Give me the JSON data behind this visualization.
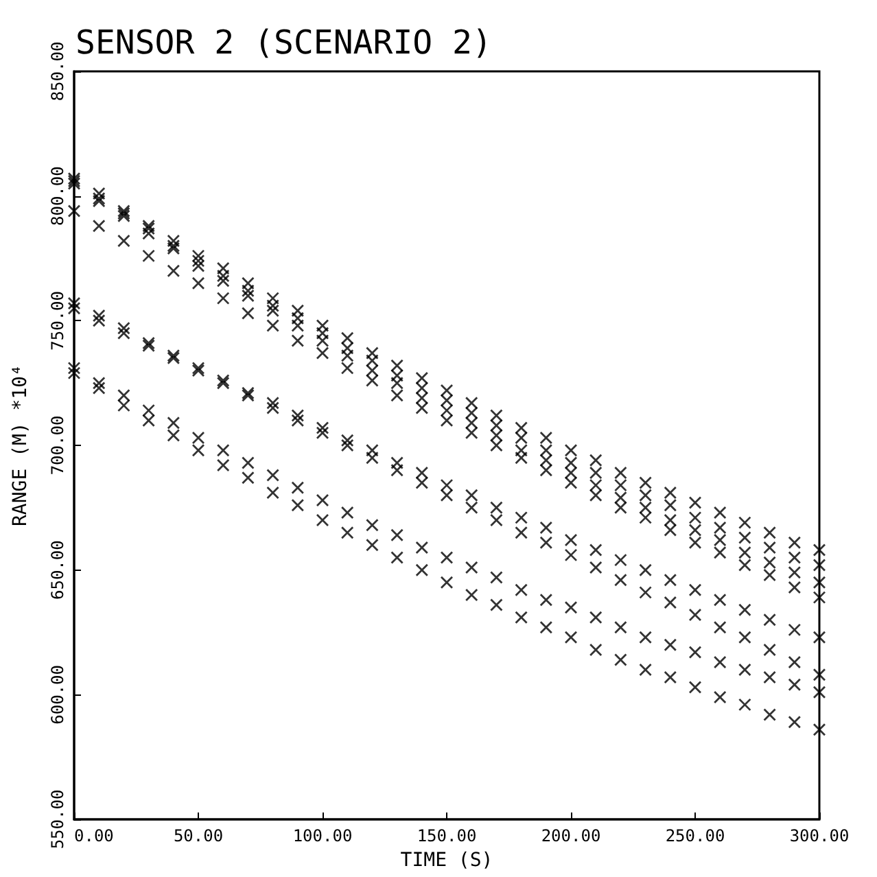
{
  "chart_data": {
    "type": "scatter",
    "title": "SENSOR 2 (SCENARIO 2)",
    "xlabel": "TIME (S)",
    "ylabel": "RANGE (M) *10⁴",
    "marker": "cross",
    "grid": false,
    "x": [
      0,
      10,
      20,
      30,
      40,
      50,
      60,
      70,
      80,
      90,
      100,
      110,
      120,
      130,
      140,
      150,
      160,
      170,
      180,
      190,
      200,
      210,
      220,
      230,
      240,
      250,
      260,
      270,
      280,
      290,
      300
    ],
    "xlim": [
      0,
      300
    ],
    "xticks": [
      {
        "value": 0,
        "label": "0.00"
      },
      {
        "value": 50,
        "label": "50.00"
      },
      {
        "value": 100,
        "label": "100.00"
      },
      {
        "value": 150,
        "label": "150.00"
      },
      {
        "value": 200,
        "label": "200.00"
      },
      {
        "value": 250,
        "label": "250.00"
      },
      {
        "value": 300,
        "label": "300.00"
      }
    ],
    "ylim": [
      550,
      850
    ],
    "yticks": [
      {
        "value": 550,
        "label": "550.00"
      },
      {
        "value": 600,
        "label": "600.00"
      },
      {
        "value": 650,
        "label": "650.00"
      },
      {
        "value": 700,
        "label": "700.00"
      },
      {
        "value": 750,
        "label": "750.00"
      },
      {
        "value": 800,
        "label": "800.00"
      },
      {
        "value": 850,
        "label": "850.00"
      }
    ],
    "series": [
      {
        "color": "#000000",
        "values": [
          807,
          801,
          794,
          788,
          782,
          776,
          771,
          765,
          759,
          754,
          748,
          743,
          737,
          732,
          727,
          722,
          717,
          712,
          707,
          703,
          698,
          694,
          689,
          685,
          681,
          677,
          673,
          669,
          665,
          661,
          658
        ]
      },
      {
        "color": "#000000",
        "values": [
          806,
          799,
          793,
          787,
          780,
          774,
          768,
          762,
          756,
          751,
          745,
          739,
          734,
          728,
          723,
          718,
          713,
          708,
          703,
          698,
          693,
          689,
          684,
          680,
          676,
          671,
          667,
          663,
          659,
          655,
          652
        ]
      },
      {
        "color": "#000000",
        "values": [
          805,
          798,
          792,
          785,
          779,
          772,
          766,
          760,
          754,
          748,
          742,
          736,
          730,
          725,
          719,
          714,
          709,
          704,
          698,
          694,
          689,
          684,
          679,
          675,
          670,
          666,
          662,
          657,
          653,
          649,
          645
        ]
      },
      {
        "color": "#000000",
        "values": [
          794,
          788,
          782,
          776,
          770,
          765,
          759,
          753,
          748,
          742,
          737,
          731,
          726,
          720,
          715,
          710,
          705,
          700,
          695,
          690,
          685,
          680,
          675,
          671,
          666,
          661,
          657,
          652,
          648,
          643,
          639
        ]
      },
      {
        "color": "#000000",
        "values": [
          757,
          752,
          747,
          741,
          736,
          731,
          726,
          721,
          717,
          712,
          707,
          702,
          698,
          693,
          689,
          684,
          680,
          675,
          671,
          667,
          662,
          658,
          654,
          650,
          646,
          642,
          638,
          634,
          630,
          626,
          623
        ]
      },
      {
        "color": "#000000",
        "values": [
          755,
          750,
          745,
          740,
          735,
          730,
          725,
          720,
          715,
          710,
          705,
          700,
          695,
          690,
          685,
          680,
          675,
          670,
          665,
          661,
          656,
          651,
          646,
          641,
          637,
          632,
          627,
          623,
          618,
          613,
          608
        ]
      },
      {
        "color": "#000000",
        "values": [
          731,
          725,
          720,
          714,
          709,
          703,
          698,
          693,
          688,
          683,
          678,
          673,
          668,
          664,
          659,
          655,
          651,
          647,
          642,
          638,
          635,
          631,
          627,
          623,
          620,
          617,
          613,
          610,
          607,
          604,
          601
        ]
      },
      {
        "color": "#000000",
        "values": [
          729,
          723,
          716,
          710,
          704,
          698,
          692,
          687,
          681,
          676,
          670,
          665,
          660,
          655,
          650,
          645,
          640,
          636,
          631,
          627,
          623,
          618,
          614,
          610,
          607,
          603,
          599,
          596,
          592,
          589,
          586
        ]
      }
    ]
  }
}
